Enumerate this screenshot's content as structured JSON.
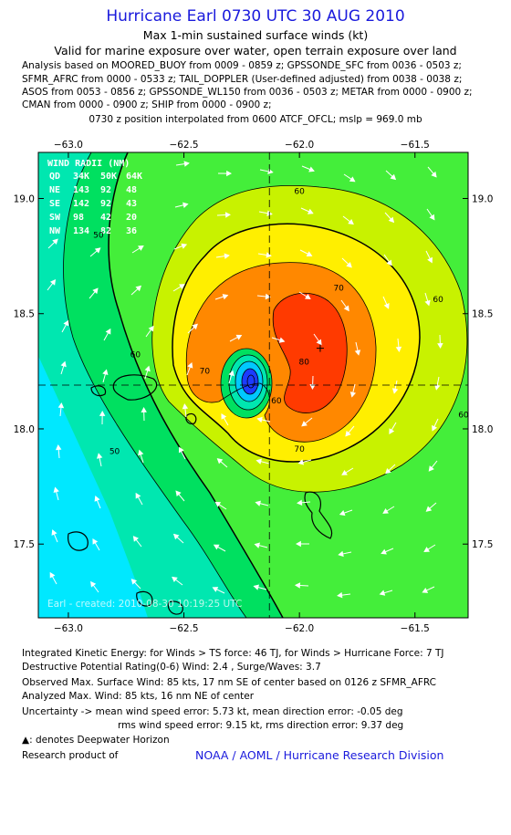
{
  "header": {
    "title": "Hurricane Earl 0730 UTC 30 AUG 2010",
    "subtitle1": "Max 1-min sustained surface winds (kt)",
    "subtitle2": "Valid for marine exposure over water, open terrain exposure over land"
  },
  "analysis_lines": [
    "Analysis based on MOORED_BUOY from 0009 - 0859 z; GPSSONDE_SFC from 0036 - 0503 z;",
    "SFMR_AFRC from 0000 - 0533 z; TAIL_DOPPLER (User-defined adjusted) from 0038 - 0038 z;",
    "ASOS from 0053 - 0856 z; GPSSONDE_WL150 from 0036 - 0503 z; METAR from 0000 - 0900 z;",
    "CMAN from 0000 - 0900 z; SHIP from 0000 - 0900 z;"
  ],
  "interp_line": "0730 z position interpolated from 0600 ATCF_OFCL; mslp = 969.0 mb",
  "chart_data": {
    "type": "heatmap",
    "xlim": [
      -63.13,
      -61.27
    ],
    "ylim": [
      17.18,
      19.2
    ],
    "x_ticks": [
      -63.0,
      -62.5,
      -62.0,
      -61.5
    ],
    "x_tick_labels": [
      "−63.0",
      "−62.5",
      "−62.0",
      "−61.5"
    ],
    "y_ticks": [
      17.5,
      18.0,
      18.5,
      19.0
    ],
    "y_tick_labels": [
      "17.5",
      "18.0",
      "18.5",
      "19.0"
    ],
    "center": {
      "lon": -62.13,
      "lat": 18.19
    },
    "max_wind_marker": {
      "lon": -61.91,
      "lat": 18.35
    },
    "contour_labels": [
      {
        "text": "60",
        "lon": -62.0,
        "lat": 19.02
      },
      {
        "text": "50",
        "lon": -62.87,
        "lat": 18.83
      },
      {
        "text": "60",
        "lon": -62.71,
        "lat": 18.31
      },
      {
        "text": "70",
        "lon": -61.83,
        "lat": 18.6
      },
      {
        "text": "60",
        "lon": -61.4,
        "lat": 18.55
      },
      {
        "text": "70",
        "lon": -62.41,
        "lat": 18.24
      },
      {
        "text": "80",
        "lon": -61.98,
        "lat": 18.28
      },
      {
        "text": "60",
        "lon": -61.29,
        "lat": 18.05
      },
      {
        "text": "50",
        "lon": -62.8,
        "lat": 17.89
      },
      {
        "text": "70",
        "lon": -62.0,
        "lat": 17.9
      },
      {
        "text": "60",
        "lon": -62.1,
        "lat": 18.11
      }
    ],
    "colors": {
      "cyan": "#00e8ff",
      "aqua_green": "#00e7b0",
      "green": "#00e060",
      "light_green": "#44ee3a",
      "yellow_green": "#c8f200",
      "yellow": "#ffef00",
      "orange": "#ff8800",
      "red": "#ff3a00",
      "blue": "#1c3cff"
    },
    "wind_radii_table": {
      "header": "WIND RADII (NM)",
      "columns": [
        "QD",
        "34K",
        "50K",
        "64K"
      ],
      "rows": [
        [
          "NE",
          "143",
          "92",
          "48"
        ],
        [
          "SE",
          "142",
          "92",
          "43"
        ],
        [
          "SW",
          "98",
          "42",
          "20"
        ],
        [
          "NW",
          "134",
          "82",
          "36"
        ]
      ]
    },
    "credit": "Earl - created: 2010-08-30 10:19:25 UTC"
  },
  "footer": {
    "ike": "Integrated Kinetic Energy: for Winds > TS force: 46 TJ, for Winds > Hurricane Force: 7 TJ",
    "dpr": "Destructive Potential Rating(0-6)  Wind: 2.4 , Surge/Waves: 3.7",
    "obs_max": "Observed Max. Surface Wind: 85 kts, 17 nm SE of center based on 0126 z SFMR_AFRC",
    "ana_max": "Analyzed Max. Wind: 85 kts, 16 nm NE of center",
    "uncert1": "Uncertainty -> mean wind speed error: 5.73 kt,   mean direction error:  -0.05 deg",
    "uncert2": "rms wind speed error: 9.15 kt,   rms direction error: 9.37 deg",
    "deepwater": ": denotes Deepwater Horizon",
    "research_label": "Research product of",
    "research_org": "NOAA / AOML / Hurricane Research Division"
  }
}
